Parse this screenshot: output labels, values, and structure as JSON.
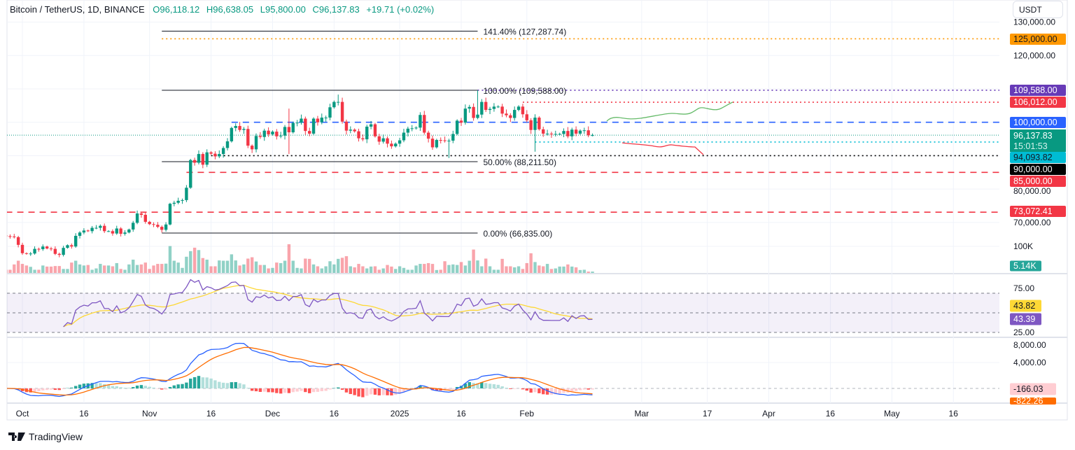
{
  "header": {
    "symbol": "Bitcoin / TetherUS, 1D, BINANCE",
    "open": "O96,118.12",
    "high": "H96,638.05",
    "low": "L95,800.00",
    "close": "C96,137.83",
    "change": "+19.71 (+0.02%)"
  },
  "currency_button": "USDT",
  "branding": {
    "name": "TradingView"
  },
  "colors": {
    "up": "#089981",
    "down": "#f23645",
    "rsi": "#7e57c2",
    "rsi_ma": "#fdd835",
    "macd": "#2962ff",
    "signal": "#ff6d00"
  },
  "chart_data": {
    "type": "candlestick",
    "title": "Bitcoin / TetherUS, 1D, BINANCE",
    "ylim": [
      64000,
      131000
    ],
    "grid": true,
    "price_axis_labels": [
      "130,000.00",
      "120,000.00",
      "80,000.00",
      "70,000.00"
    ],
    "price_axis_values": [
      130000,
      120000,
      80000,
      70000
    ],
    "x_ticks": [
      {
        "date": "2024-10-01",
        "label": "Oct"
      },
      {
        "date": "2024-10-16",
        "label": "16"
      },
      {
        "date": "2024-11-01",
        "label": "Nov"
      },
      {
        "date": "2024-11-16",
        "label": "16"
      },
      {
        "date": "2024-12-01",
        "label": "Dec"
      },
      {
        "date": "2024-12-16",
        "label": "16"
      },
      {
        "date": "2025-01-01",
        "label": "2025"
      },
      {
        "date": "2025-01-16",
        "label": "16"
      },
      {
        "date": "2025-02-01",
        "label": "Feb"
      },
      {
        "date": "2025-03-01",
        "label": "Mar"
      },
      {
        "date": "2025-03-17",
        "label": "17"
      },
      {
        "date": "2025-04-01",
        "label": "Apr"
      },
      {
        "date": "2025-04-16",
        "label": "16"
      },
      {
        "date": "2025-05-01",
        "label": "May"
      },
      {
        "date": "2025-05-16",
        "label": "16"
      }
    ],
    "last_candle": {
      "open": 96118.12,
      "high": 96638.05,
      "low": 95800.0,
      "close": 96137.83
    },
    "candles_columns": [
      "date",
      "close",
      "volume_k"
    ],
    "candles": [
      [
        "2024-09-27",
        65900,
        12
      ],
      [
        "2024-09-28",
        65800,
        12
      ],
      [
        "2024-09-29",
        65600,
        32
      ],
      [
        "2024-09-30",
        63300,
        46
      ],
      [
        "2024-10-01",
        60800,
        34
      ],
      [
        "2024-10-02",
        60600,
        28
      ],
      [
        "2024-10-03",
        60700,
        23
      ],
      [
        "2024-10-04",
        62100,
        12
      ],
      [
        "2024-10-05",
        62000,
        12
      ],
      [
        "2024-10-06",
        62800,
        28
      ],
      [
        "2024-10-07",
        62200,
        24
      ],
      [
        "2024-10-08",
        62100,
        24
      ],
      [
        "2024-10-09",
        60600,
        26
      ],
      [
        "2024-10-10",
        60300,
        26
      ],
      [
        "2024-10-11",
        62400,
        15
      ],
      [
        "2024-10-12",
        63200,
        15
      ],
      [
        "2024-10-13",
        62800,
        39
      ],
      [
        "2024-10-14",
        66000,
        46
      ],
      [
        "2024-10-15",
        67000,
        32
      ],
      [
        "2024-10-16",
        67600,
        28
      ],
      [
        "2024-10-17",
        67400,
        30
      ],
      [
        "2024-10-18",
        68400,
        12
      ],
      [
        "2024-10-19",
        68400,
        17
      ],
      [
        "2024-10-20",
        69000,
        34
      ],
      [
        "2024-10-21",
        67400,
        28
      ],
      [
        "2024-10-22",
        67400,
        28
      ],
      [
        "2024-10-23",
        66700,
        25
      ],
      [
        "2024-10-24",
        68200,
        37
      ],
      [
        "2024-10-25",
        66600,
        15
      ],
      [
        "2024-10-26",
        67000,
        12
      ],
      [
        "2024-10-27",
        67900,
        32
      ],
      [
        "2024-10-28",
        69900,
        50
      ],
      [
        "2024-10-29",
        72700,
        30
      ],
      [
        "2024-10-30",
        72300,
        32
      ],
      [
        "2024-10-31",
        70200,
        39
      ],
      [
        "2024-11-01",
        69500,
        15
      ],
      [
        "2024-11-02",
        69300,
        28
      ],
      [
        "2024-11-03",
        68700,
        34
      ],
      [
        "2024-11-04",
        67800,
        34
      ],
      [
        "2024-11-05",
        69400,
        35
      ],
      [
        "2024-11-06",
        75600,
        101
      ],
      [
        "2024-11-07",
        75900,
        46
      ],
      [
        "2024-11-08",
        76500,
        39
      ],
      [
        "2024-11-09",
        76700,
        19
      ],
      [
        "2024-11-10",
        80400,
        61
      ],
      [
        "2024-11-11",
        88700,
        82
      ],
      [
        "2024-11-12",
        87900,
        95
      ],
      [
        "2024-11-13",
        90500,
        86
      ],
      [
        "2024-11-14",
        87300,
        56
      ],
      [
        "2024-11-15",
        91000,
        50
      ],
      [
        "2024-11-16",
        90600,
        25
      ],
      [
        "2024-11-17",
        89800,
        25
      ],
      [
        "2024-11-18",
        90500,
        47
      ],
      [
        "2024-11-19",
        92300,
        46
      ],
      [
        "2024-11-20",
        94300,
        46
      ],
      [
        "2024-11-21",
        98300,
        70
      ],
      [
        "2024-11-22",
        98900,
        47
      ],
      [
        "2024-11-23",
        97700,
        28
      ],
      [
        "2024-11-24",
        98000,
        32
      ],
      [
        "2024-11-25",
        93000,
        54
      ],
      [
        "2024-11-26",
        91900,
        59
      ],
      [
        "2024-11-27",
        95900,
        43
      ],
      [
        "2024-11-28",
        95600,
        30
      ],
      [
        "2024-11-29",
        97500,
        30
      ],
      [
        "2024-11-30",
        96400,
        17
      ],
      [
        "2024-12-01",
        97200,
        19
      ],
      [
        "2024-12-02",
        95800,
        39
      ],
      [
        "2024-12-03",
        96000,
        37
      ],
      [
        "2024-12-04",
        98600,
        46
      ],
      [
        "2024-12-05",
        97000,
        108
      ],
      [
        "2024-12-06",
        99800,
        46
      ],
      [
        "2024-12-07",
        99900,
        19
      ],
      [
        "2024-12-08",
        101100,
        17
      ],
      [
        "2024-12-09",
        97400,
        54
      ],
      [
        "2024-12-10",
        96600,
        53
      ],
      [
        "2024-12-11",
        101100,
        32
      ],
      [
        "2024-12-12",
        100000,
        25
      ],
      [
        "2024-12-13",
        101400,
        17
      ],
      [
        "2024-12-14",
        101400,
        25
      ],
      [
        "2024-12-15",
        104500,
        44
      ],
      [
        "2024-12-16",
        106100,
        32
      ],
      [
        "2024-12-17",
        106100,
        53
      ],
      [
        "2024-12-18",
        100200,
        57
      ],
      [
        "2024-12-19",
        97500,
        63
      ],
      [
        "2024-12-20",
        97800,
        25
      ],
      [
        "2024-12-21",
        97300,
        21
      ],
      [
        "2024-12-22",
        95200,
        34
      ],
      [
        "2024-12-23",
        94900,
        25
      ],
      [
        "2024-12-24",
        98700,
        17
      ],
      [
        "2024-12-25",
        99400,
        24
      ],
      [
        "2024-12-26",
        95800,
        25
      ],
      [
        "2024-12-27",
        94200,
        12
      ],
      [
        "2024-12-28",
        95200,
        17
      ],
      [
        "2024-12-29",
        93600,
        30
      ],
      [
        "2024-12-30",
        92800,
        24
      ],
      [
        "2024-12-31",
        93600,
        15
      ],
      [
        "2025-01-01",
        94600,
        25
      ],
      [
        "2025-01-02",
        96900,
        19
      ],
      [
        "2025-01-03",
        98100,
        12
      ],
      [
        "2025-01-04",
        98200,
        12
      ],
      [
        "2025-01-05",
        98400,
        28
      ],
      [
        "2025-01-06",
        102200,
        34
      ],
      [
        "2025-01-07",
        96900,
        34
      ],
      [
        "2025-01-08",
        95100,
        37
      ],
      [
        "2025-01-09",
        92500,
        34
      ],
      [
        "2025-01-10",
        94700,
        11
      ],
      [
        "2025-01-11",
        94600,
        12
      ],
      [
        "2025-01-12",
        94500,
        44
      ],
      [
        "2025-01-13",
        94500,
        30
      ],
      [
        "2025-01-14",
        96500,
        32
      ],
      [
        "2025-01-15",
        100500,
        30
      ],
      [
        "2025-01-16",
        99900,
        41
      ],
      [
        "2025-01-17",
        104100,
        28
      ],
      [
        "2025-01-18",
        104600,
        46
      ],
      [
        "2025-01-19",
        101300,
        88
      ],
      [
        "2025-01-20",
        102300,
        47
      ],
      [
        "2025-01-21",
        106100,
        25
      ],
      [
        "2025-01-22",
        103700,
        54
      ],
      [
        "2025-01-23",
        104000,
        25
      ],
      [
        "2025-01-24",
        104700,
        12
      ],
      [
        "2025-01-25",
        104700,
        12
      ],
      [
        "2025-01-26",
        102600,
        53
      ],
      [
        "2025-01-27",
        102100,
        25
      ],
      [
        "2025-01-28",
        101300,
        25
      ],
      [
        "2025-01-29",
        103700,
        21
      ],
      [
        "2025-01-30",
        104700,
        25
      ],
      [
        "2025-01-31",
        102400,
        15
      ],
      [
        "2025-02-01",
        100600,
        37
      ],
      [
        "2025-02-02",
        97700,
        74
      ],
      [
        "2025-02-03",
        101400,
        41
      ],
      [
        "2025-02-04",
        97900,
        28
      ],
      [
        "2025-02-05",
        96600,
        25
      ],
      [
        "2025-02-06",
        96600,
        34
      ],
      [
        "2025-02-07",
        96500,
        15
      ],
      [
        "2025-02-08",
        96500,
        17
      ],
      [
        "2025-02-09",
        96500,
        24
      ],
      [
        "2025-02-10",
        97400,
        24
      ],
      [
        "2025-02-11",
        95800,
        32
      ],
      [
        "2025-02-12",
        97800,
        24
      ],
      [
        "2025-02-13",
        96600,
        21
      ],
      [
        "2025-02-14",
        97500,
        11
      ],
      [
        "2025-02-15",
        97600,
        12
      ],
      [
        "2025-02-16",
        96100,
        5.14
      ],
      [
        "2025-02-17",
        96137.83,
        5.14
      ]
    ],
    "wick_extremes": [
      {
        "date": "2024-12-05",
        "high": 104100,
        "low": 90500
      },
      {
        "date": "2024-12-17",
        "high": 108300
      },
      {
        "date": "2025-01-13",
        "low": 89300
      },
      {
        "date": "2025-01-20",
        "high": 109588
      },
      {
        "date": "2025-02-03",
        "low": 91200
      },
      {
        "date": "2024-11-26",
        "low": 90800
      }
    ],
    "fibonacci": {
      "from_date": "2024-11-04",
      "to_date": "2025-01-20",
      "levels": [
        {
          "price": 127287.74,
          "label": "141.40% (127,287.74)"
        },
        {
          "price": 109588.0,
          "label": "100.00% (109,588.00)"
        },
        {
          "price": 88211.5,
          "label": "50.00% (88,211.50)"
        },
        {
          "price": 66835.0,
          "label": "0.00% (66,835.00)"
        }
      ]
    },
    "horizontal_lines": [
      {
        "price": 125000,
        "tag": "125,000.00",
        "color": "#ff9800",
        "style": "dotted",
        "from_date": "2024-11-04"
      },
      {
        "price": 109588,
        "tag": "109,588.00",
        "color": "#673ab7",
        "style": "dotted",
        "from_date": "2025-01-20"
      },
      {
        "price": 106012,
        "tag": "106,012.00",
        "color": "#f23645",
        "style": "dotted",
        "from_date": "2025-01-31"
      },
      {
        "price": 100000,
        "tag": "100,000.00",
        "color": "#2962ff",
        "style": "dashed",
        "from_date": "2024-11-21"
      },
      {
        "price": 94093.82,
        "tag": "94,093.82",
        "color": "#00bcd4",
        "style": "dotted",
        "from_date": "2025-02-03"
      },
      {
        "price": 90000,
        "tag": "90,000.00",
        "color": "#000000",
        "style": "dotted",
        "from_date": "2024-11-15"
      },
      {
        "price": 85000,
        "tag": "85,000.00",
        "color": "#f23645",
        "style": "dashed",
        "from_date": "2024-11-10"
      },
      {
        "price": 73072.41,
        "tag": "73,072.41",
        "color": "#f23645",
        "style": "dashed",
        "from_date": "2024-09-27"
      }
    ],
    "current_price": {
      "tag": "96,137.83",
      "countdown": "15:01:53",
      "color": "#089981"
    },
    "volume": {
      "axis_label": "100K",
      "last_tag": "5.14K"
    },
    "rsi": {
      "length": 14,
      "levels": [
        70,
        50,
        30
      ],
      "axis_labels": [
        "75.00",
        "25.00"
      ],
      "ma_tag": "43.82",
      "rsi_tag": "43.39"
    },
    "macd": {
      "fast": 12,
      "slow": 26,
      "signal": 9,
      "axis_labels": [
        "8,000.00",
        "4,000.00"
      ],
      "macd_tag": "-166.03",
      "signal_tag": "-822.26"
    }
  }
}
